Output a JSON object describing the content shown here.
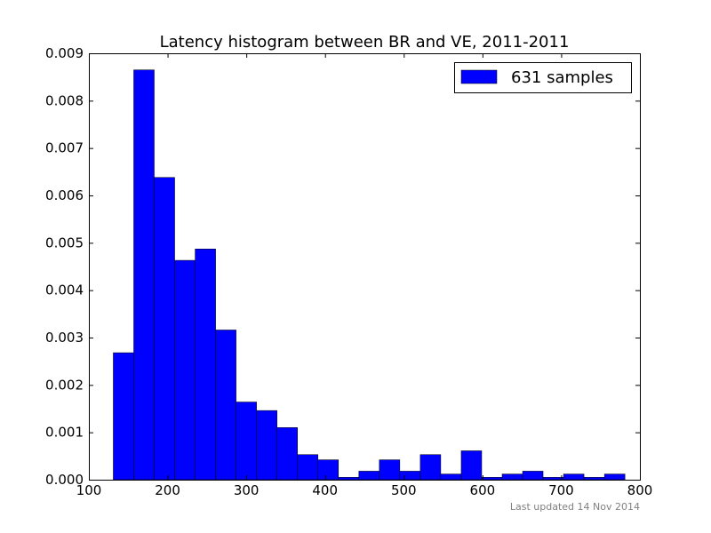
{
  "chart_data": {
    "type": "bar",
    "title": "Latency histogram between BR and VE, 2011-2011",
    "xlabel": "",
    "ylabel": "",
    "xlim": [
      100,
      800
    ],
    "ylim": [
      0,
      0.009
    ],
    "x_ticks": [
      100,
      200,
      300,
      400,
      500,
      600,
      700,
      800
    ],
    "y_ticks": [
      0.0,
      0.001,
      0.002,
      0.003,
      0.004,
      0.005,
      0.006,
      0.007,
      0.008,
      0.009
    ],
    "y_tick_labels": [
      "0.000",
      "0.001",
      "0.002",
      "0.003",
      "0.004",
      "0.005",
      "0.006",
      "0.007",
      "0.008",
      "0.009"
    ],
    "bin_edges": [
      131,
      157,
      183,
      209,
      235,
      261,
      287,
      313,
      339,
      365,
      391,
      417,
      443,
      469,
      495,
      521,
      547,
      573,
      599,
      625,
      651,
      677,
      703,
      729,
      755,
      781
    ],
    "series": [
      {
        "name": "631 samples",
        "color": "#0000ff",
        "values": [
          0.00268,
          0.00865,
          0.00638,
          0.00463,
          0.00487,
          0.00316,
          0.00164,
          0.00146,
          0.0011,
          0.00053,
          0.00042,
          5e-05,
          0.00018,
          0.00042,
          0.00018,
          0.00053,
          0.00012,
          0.00061,
          5e-05,
          0.00012,
          0.00018,
          5e-05,
          0.00012,
          5e-05,
          0.00012
        ]
      }
    ],
    "legend": {
      "position": "top-right",
      "label": "631 samples"
    },
    "grid": false
  },
  "footer": {
    "text": "Last updated 14 Nov 2014"
  }
}
